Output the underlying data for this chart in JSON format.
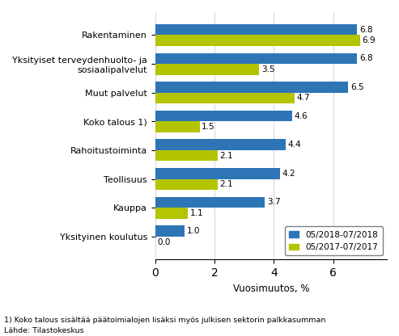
{
  "categories": [
    "Rakentaminen",
    "Yksityiset terveydenhuolto- ja\nsosiaalipalvelut",
    "Muut palvelut",
    "Koko talous 1)",
    "Rahoitustoiminta",
    "Teollisuus",
    "Kauppa",
    "Yksityinen koulutus"
  ],
  "values_2018": [
    6.8,
    6.8,
    6.5,
    4.6,
    4.4,
    4.2,
    3.7,
    1.0
  ],
  "values_2017": [
    6.9,
    3.5,
    4.7,
    1.5,
    2.1,
    2.1,
    1.1,
    0.0
  ],
  "color_2018": "#2e75b6",
  "color_2017": "#b5c400",
  "xlabel": "Vuosimuutos, %",
  "xlim": [
    0,
    7.8
  ],
  "xticks": [
    0,
    2,
    4,
    6
  ],
  "legend_2018": "05/2018-07/2018",
  "legend_2017": "05/2017-07/2017",
  "footnote1": "1) Koko talous sisältää päätoimialojen lisäksi myös julkisen sektorin palkkasumman",
  "footnote2": "Lähde: Tilastokeskus"
}
